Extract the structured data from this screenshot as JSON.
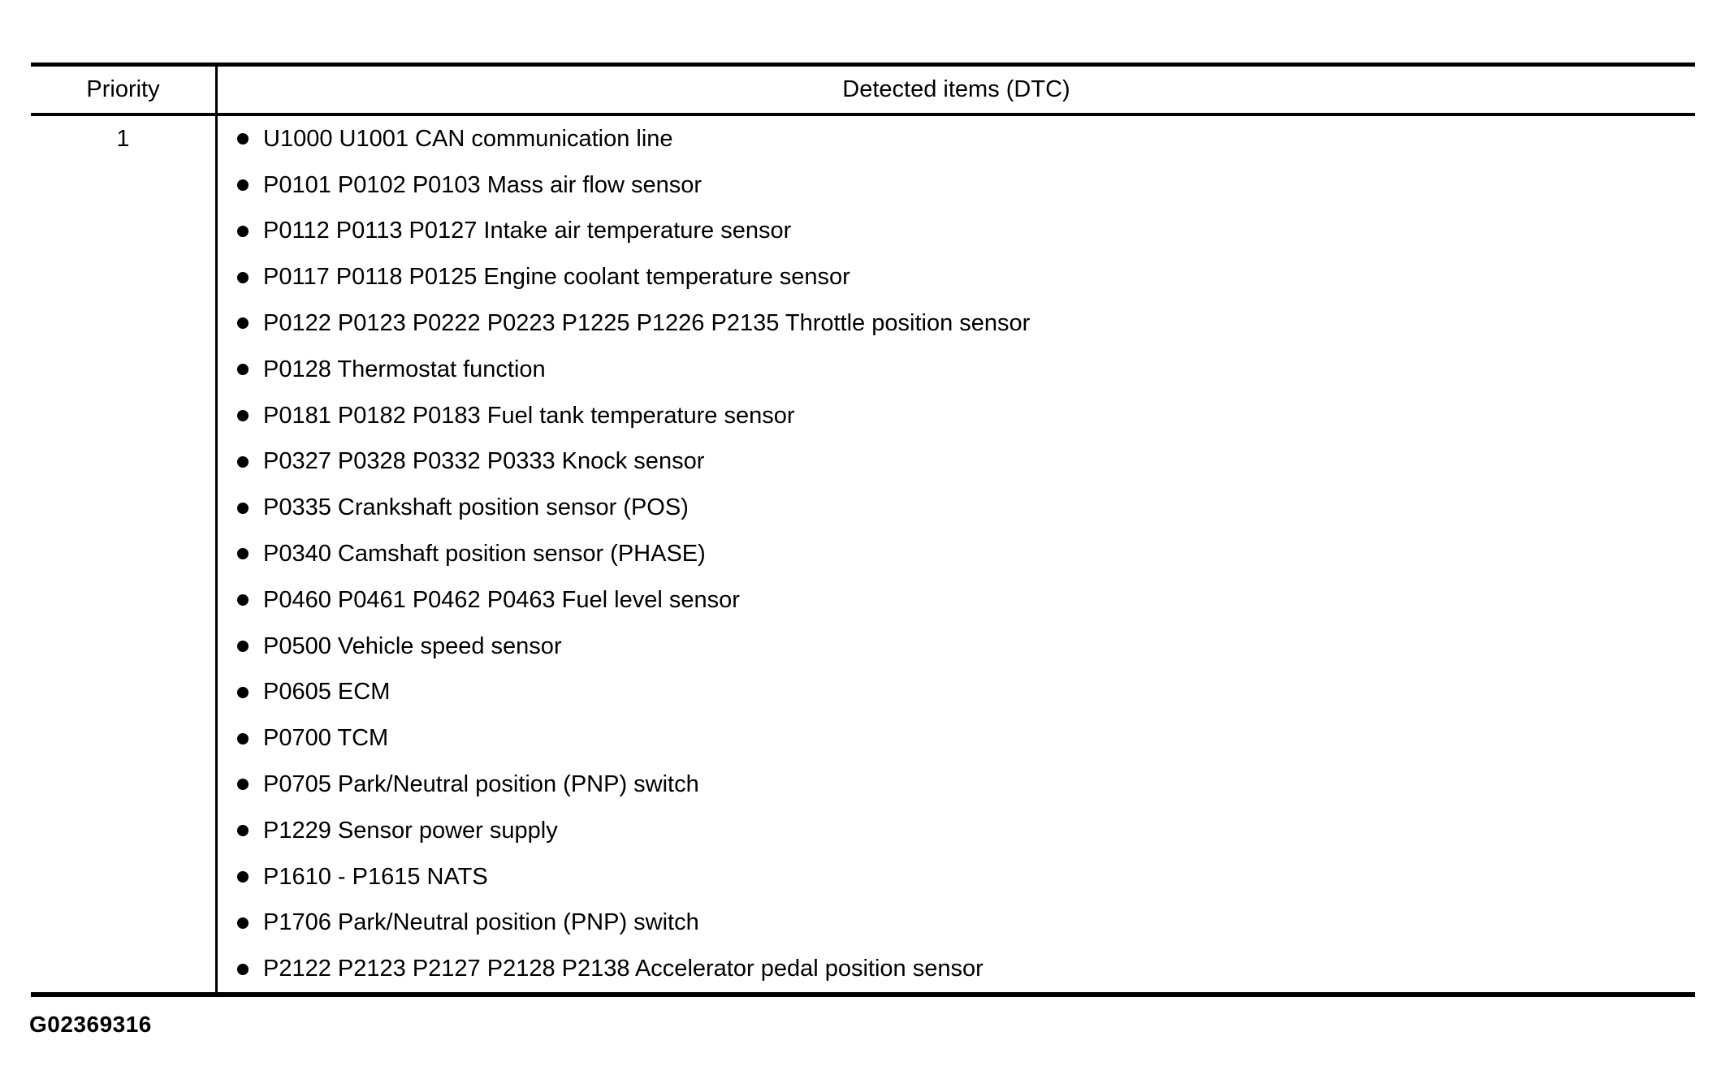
{
  "colors": {
    "background": "#ffffff",
    "text": "#000000",
    "border": "#000000"
  },
  "icons": {
    "bullet": "filled-circle"
  },
  "figure_id": "G02369316",
  "table": {
    "columns": [
      {
        "label": "Priority"
      },
      {
        "label": "Detected items (DTC)"
      }
    ],
    "rows": [
      {
        "priority": "1",
        "items": [
          "U1000 U1001 CAN communication line",
          "P0101 P0102 P0103 Mass air flow sensor",
          "P0112 P0113 P0127 Intake air temperature sensor",
          "P0117 P0118 P0125 Engine coolant temperature sensor",
          "P0122 P0123 P0222 P0223 P1225 P1226 P2135 Throttle position sensor",
          "P0128 Thermostat function",
          "P0181 P0182 P0183 Fuel tank temperature sensor",
          "P0327 P0328 P0332 P0333 Knock sensor",
          "P0335 Crankshaft position sensor (POS)",
          "P0340 Camshaft position sensor (PHASE)",
          "P0460 P0461 P0462 P0463 Fuel level sensor",
          "P0500 Vehicle speed sensor",
          "P0605 ECM",
          "P0700 TCM",
          "P0705 Park/Neutral position (PNP) switch",
          "P1229 Sensor power supply",
          "P1610 - P1615 NATS",
          "P1706 Park/Neutral position (PNP) switch",
          "P2122 P2123 P2127 P2128 P2138 Accelerator pedal position sensor"
        ]
      }
    ]
  }
}
